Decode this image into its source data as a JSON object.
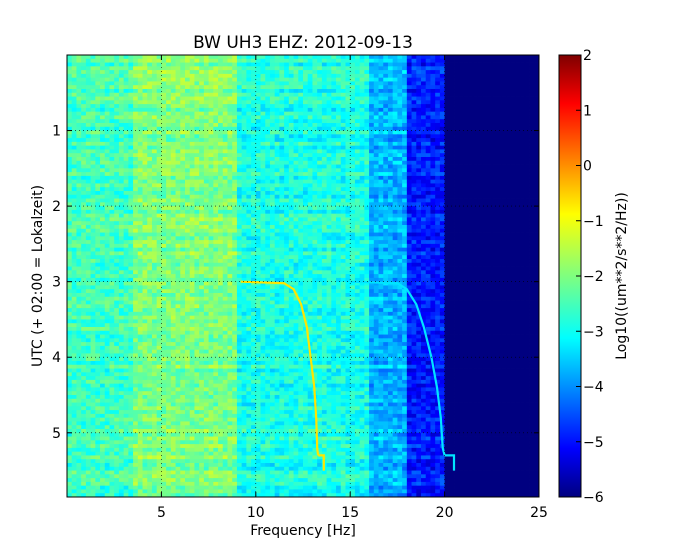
{
  "chart_data": {
    "type": "heatmap",
    "title": "BW UH3 EHZ: 2012-09-13",
    "xlabel": "Frequency [Hz]",
    "ylabel": "UTC (+ 02:00 = Lokalzeit)",
    "colorbar_label": "Log10((um**2/s**2/Hz))",
    "xlim": [
      0,
      25
    ],
    "ylim": [
      5.85,
      0
    ],
    "x_ticks": [
      5,
      10,
      15,
      20,
      25
    ],
    "y_ticks": [
      1,
      2,
      3,
      4,
      5
    ],
    "colorbar_range": [
      -6,
      2
    ],
    "colorbar_ticks": [
      2,
      1,
      0,
      -1,
      -2,
      -3,
      -4,
      -5,
      -6
    ],
    "colormap": "jet",
    "grid": true,
    "background_level_by_band": [
      {
        "freq_range": [
          0,
          3.5
        ],
        "level": -2.5
      },
      {
        "freq_range": [
          3.5,
          9
        ],
        "level": -2.0
      },
      {
        "freq_range": [
          9,
          16
        ],
        "level": -2.8
      },
      {
        "freq_range": [
          16,
          18
        ],
        "level": -3.6
      },
      {
        "freq_range": [
          18,
          20
        ],
        "level": -4.8
      },
      {
        "freq_range": [
          20,
          25
        ],
        "level": -6.0
      }
    ],
    "series": [
      {
        "x": [
          9.2,
          11.5,
          12.0,
          12.4,
          12.7,
          12.9,
          13.1,
          13.2,
          13.25,
          13.3
        ],
        "y": [
          3.0,
          3.02,
          3.1,
          3.3,
          3.6,
          4.0,
          4.4,
          4.8,
          5.2,
          5.3
        ],
        "level": -0.8
      },
      {
        "x": [
          13.3,
          13.6,
          13.6
        ],
        "y": [
          5.3,
          5.3,
          5.5
        ],
        "level": -0.8
      },
      {
        "x": [
          15.0,
          17.5,
          18.0,
          18.5,
          18.9,
          19.3,
          19.6,
          19.8,
          19.9,
          20.0
        ],
        "y": [
          3.0,
          3.02,
          3.1,
          3.3,
          3.6,
          4.0,
          4.4,
          4.8,
          5.2,
          5.3
        ],
        "level": -3.2
      },
      {
        "x": [
          20.0,
          20.5,
          20.5
        ],
        "y": [
          5.3,
          5.3,
          5.5
        ],
        "level": -3.2
      }
    ]
  }
}
